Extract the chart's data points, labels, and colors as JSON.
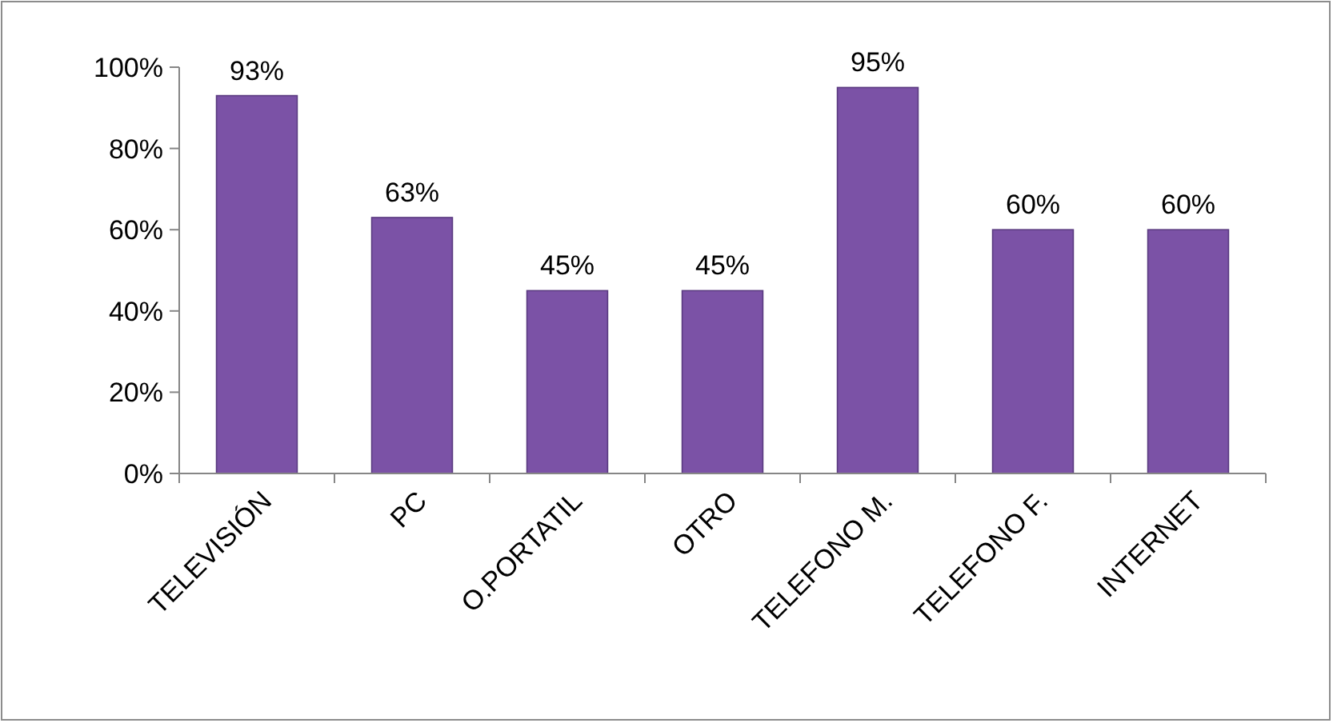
{
  "chart_data": {
    "type": "bar",
    "categories": [
      "TELEVISIÓN",
      "PC",
      "O.PORTATIL",
      "OTRO",
      "TELEFONO M.",
      "TELEFONO F.",
      "INTERNET"
    ],
    "values": [
      93,
      63,
      45,
      45,
      95,
      60,
      60
    ],
    "value_labels": [
      "93%",
      "63%",
      "45%",
      "45%",
      "95%",
      "60%",
      "60%"
    ],
    "color": "#7b52a6",
    "ylim": [
      0,
      100
    ],
    "yticks": [
      {
        "value": 0,
        "label": "0%"
      },
      {
        "value": 20,
        "label": "20%"
      },
      {
        "value": 40,
        "label": "40%"
      },
      {
        "value": 60,
        "label": "60%"
      },
      {
        "value": 80,
        "label": "80%"
      },
      {
        "value": 100,
        "label": "100%"
      }
    ],
    "grid": false
  }
}
